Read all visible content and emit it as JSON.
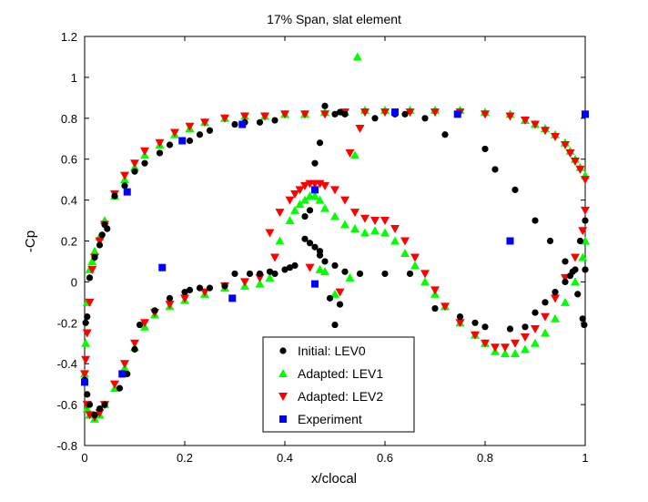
{
  "chart_data": {
    "type": "scatter",
    "title": "17% Span, slat element",
    "xlabel": "x/clocal",
    "ylabel": "-Cp",
    "xlim": [
      0,
      1
    ],
    "ylim": [
      -0.8,
      1.2
    ],
    "xticks": [
      "0",
      "0.2",
      "0.4",
      "0.6",
      "0.8",
      "1"
    ],
    "yticks": [
      "-0.8",
      "-0.6",
      "-0.4",
      "-0.2",
      "0",
      "0.2",
      "0.4",
      "0.6",
      "0.8",
      "1",
      "1.2"
    ],
    "legend_position": "bottom-center",
    "series": [
      {
        "name": "Initial: LEV0",
        "marker": "circle",
        "color": "#000000",
        "x": [
          0.0,
          0.002,
          0.005,
          0.01,
          0.02,
          0.03,
          0.035,
          0.04,
          0.045,
          0.06,
          0.08,
          0.1,
          0.12,
          0.15,
          0.17,
          0.21,
          0.23,
          0.25,
          0.3,
          0.32,
          0.35,
          0.38,
          0.005,
          0.01,
          0.02,
          0.03,
          0.04,
          0.07,
          0.085,
          0.1,
          0.11,
          0.14,
          0.17,
          0.2,
          0.21,
          0.23,
          0.25,
          0.28,
          0.3,
          0.33,
          0.35,
          0.37,
          0.38,
          0.4,
          0.41,
          0.42,
          0.44,
          0.45,
          0.46,
          0.47,
          0.48,
          0.5,
          0.52,
          0.55,
          0.6,
          0.65,
          0.7,
          0.75,
          0.78,
          0.8,
          0.85,
          0.88,
          0.9,
          0.92,
          0.94,
          0.96,
          0.97,
          0.98,
          0.99,
          1.0,
          0.45,
          0.46,
          0.47,
          0.48,
          0.5,
          0.51,
          0.52,
          0.58,
          0.62,
          0.64,
          0.68,
          0.72,
          0.8,
          0.82,
          0.86,
          0.9,
          0.93,
          0.96,
          0.975,
          0.985,
          0.995,
          0.998,
          1.0
        ],
        "y": [
          -0.48,
          -0.2,
          -0.17,
          0.02,
          0.12,
          0.18,
          0.23,
          0.28,
          0.26,
          0.42,
          0.47,
          0.54,
          0.58,
          0.63,
          0.67,
          0.69,
          0.72,
          0.74,
          0.77,
          0.78,
          0.78,
          0.79,
          -0.55,
          -0.6,
          -0.65,
          -0.62,
          -0.6,
          -0.52,
          -0.45,
          -0.33,
          -0.21,
          -0.14,
          -0.08,
          -0.05,
          -0.04,
          -0.03,
          -0.03,
          -0.02,
          0.04,
          0.04,
          0.04,
          0.05,
          0.04,
          0.06,
          0.07,
          0.08,
          0.21,
          0.19,
          0.17,
          0.13,
          0.1,
          0.08,
          0.05,
          0.04,
          0.04,
          0.04,
          -0.13,
          -0.17,
          -0.2,
          -0.22,
          -0.23,
          -0.22,
          -0.15,
          -0.1,
          -0.05,
          0.0,
          0.03,
          0.06,
          0.2,
          0.3,
          0.35,
          0.58,
          0.68,
          0.86,
          0.82,
          0.83,
          0.82,
          0.8,
          0.82,
          0.82,
          0.8,
          0.72,
          0.65,
          0.55,
          0.45,
          0.3,
          0.2,
          0.1,
          0.05,
          -0.06,
          -0.18,
          -0.21,
          0.06
        ],
        "extra_x": [
          0.5,
          0.51,
          0.49,
          0.47,
          0.44
        ],
        "extra_y": [
          -0.21,
          -0.11,
          -0.08,
          0.15,
          0.32
        ]
      },
      {
        "name": "Adapted: LEV1",
        "marker": "triangle-up",
        "color": "#00ff00",
        "x": [
          0.0,
          0.002,
          0.005,
          0.01,
          0.015,
          0.02,
          0.03,
          0.04,
          0.06,
          0.08,
          0.1,
          0.12,
          0.15,
          0.18,
          0.21,
          0.24,
          0.28,
          0.32,
          0.36,
          0.4,
          0.44,
          0.48,
          0.52,
          0.56,
          0.6,
          0.65,
          0.7,
          0.75,
          0.8,
          0.85,
          0.88,
          0.9,
          0.92,
          0.94,
          0.96,
          0.97,
          0.98,
          0.99,
          1.0,
          0.005,
          0.01,
          0.02,
          0.03,
          0.04,
          0.06,
          0.08,
          0.1,
          0.12,
          0.14,
          0.17,
          0.2,
          0.24,
          0.28,
          0.32,
          0.35,
          0.37,
          0.39,
          0.41,
          0.42,
          0.43,
          0.44,
          0.45,
          0.46,
          0.47,
          0.48,
          0.5,
          0.52,
          0.54,
          0.56,
          0.58,
          0.6,
          0.62,
          0.64,
          0.66,
          0.68,
          0.7,
          0.72,
          0.75,
          0.78,
          0.8,
          0.82,
          0.84,
          0.86,
          0.88,
          0.9,
          0.92,
          0.94,
          0.96,
          0.98,
          0.995,
          1.0,
          0.545,
          0.54,
          0.53,
          0.5,
          0.48,
          0.47
        ],
        "y": [
          -0.45,
          -0.3,
          -0.1,
          0.06,
          0.1,
          0.15,
          0.22,
          0.3,
          0.42,
          0.5,
          0.56,
          0.62,
          0.67,
          0.72,
          0.75,
          0.78,
          0.8,
          0.81,
          0.81,
          0.82,
          0.82,
          0.83,
          0.83,
          0.84,
          0.84,
          0.84,
          0.84,
          0.84,
          0.83,
          0.82,
          0.79,
          0.77,
          0.75,
          0.72,
          0.68,
          0.64,
          0.6,
          0.56,
          0.52,
          -0.62,
          -0.65,
          -0.67,
          -0.65,
          -0.6,
          -0.52,
          -0.42,
          -0.32,
          -0.22,
          -0.16,
          -0.12,
          -0.09,
          -0.06,
          -0.03,
          -0.02,
          -0.01,
          0.02,
          0.2,
          0.3,
          0.35,
          0.38,
          0.4,
          0.42,
          0.42,
          0.4,
          0.36,
          0.32,
          0.28,
          0.26,
          0.24,
          0.25,
          0.24,
          0.2,
          0.14,
          0.08,
          0.0,
          -0.06,
          -0.12,
          -0.2,
          -0.26,
          -0.3,
          -0.34,
          -0.35,
          -0.35,
          -0.33,
          -0.3,
          -0.25,
          -0.18,
          -0.1,
          0.0,
          0.12,
          0.2,
          1.1,
          0.62,
          0.02,
          -0.06,
          0.05,
          0.06
        ]
      },
      {
        "name": "Adapted: LEV2",
        "marker": "triangle-down",
        "color": "#ff0000",
        "x": [
          0.0,
          0.002,
          0.005,
          0.01,
          0.015,
          0.02,
          0.03,
          0.04,
          0.06,
          0.08,
          0.1,
          0.12,
          0.15,
          0.18,
          0.21,
          0.24,
          0.28,
          0.32,
          0.36,
          0.4,
          0.44,
          0.48,
          0.52,
          0.56,
          0.6,
          0.65,
          0.7,
          0.75,
          0.8,
          0.85,
          0.88,
          0.9,
          0.92,
          0.94,
          0.96,
          0.97,
          0.98,
          0.99,
          1.0,
          0.005,
          0.01,
          0.02,
          0.03,
          0.04,
          0.06,
          0.08,
          0.1,
          0.12,
          0.14,
          0.17,
          0.2,
          0.24,
          0.28,
          0.32,
          0.35,
          0.37,
          0.39,
          0.41,
          0.42,
          0.43,
          0.44,
          0.45,
          0.46,
          0.47,
          0.48,
          0.5,
          0.52,
          0.54,
          0.56,
          0.58,
          0.6,
          0.62,
          0.64,
          0.66,
          0.68,
          0.7,
          0.72,
          0.75,
          0.78,
          0.8,
          0.82,
          0.84,
          0.86,
          0.88,
          0.9,
          0.92,
          0.94,
          0.96,
          0.98,
          0.995,
          1.0,
          0.55,
          0.53,
          0.45,
          0.51,
          0.38
        ],
        "y": [
          -0.45,
          -0.38,
          -0.25,
          -0.1,
          0.06,
          0.12,
          0.2,
          0.28,
          0.43,
          0.52,
          0.58,
          0.64,
          0.68,
          0.73,
          0.76,
          0.78,
          0.8,
          0.81,
          0.81,
          0.82,
          0.82,
          0.82,
          0.83,
          0.83,
          0.83,
          0.83,
          0.83,
          0.83,
          0.82,
          0.81,
          0.79,
          0.77,
          0.74,
          0.71,
          0.67,
          0.63,
          0.59,
          0.55,
          0.5,
          -0.6,
          -0.65,
          -0.66,
          -0.64,
          -0.6,
          -0.5,
          -0.4,
          -0.3,
          -0.2,
          -0.15,
          -0.11,
          -0.08,
          -0.05,
          -0.02,
          0.0,
          0.02,
          0.24,
          0.34,
          0.4,
          0.43,
          0.45,
          0.47,
          0.48,
          0.48,
          0.48,
          0.47,
          0.45,
          0.4,
          0.34,
          0.31,
          0.3,
          0.3,
          0.26,
          0.2,
          0.12,
          0.04,
          -0.04,
          -0.12,
          -0.2,
          -0.26,
          -0.3,
          -0.32,
          -0.32,
          -0.3,
          -0.27,
          -0.23,
          -0.17,
          -0.08,
          0.02,
          0.12,
          0.25,
          0.35,
          0.75,
          0.63,
          0.07,
          -0.05,
          0.12
        ]
      },
      {
        "name": "Experiment",
        "marker": "square",
        "color": "#0000ff",
        "x": [
          0.0,
          0.075,
          0.085,
          0.155,
          0.195,
          0.295,
          0.315,
          0.46,
          0.46,
          0.62,
          0.745,
          0.85,
          1.0
        ],
        "y": [
          -0.49,
          -0.45,
          0.44,
          0.07,
          0.69,
          -0.08,
          0.77,
          0.45,
          -0.01,
          0.83,
          0.82,
          0.2,
          0.82
        ]
      }
    ]
  }
}
